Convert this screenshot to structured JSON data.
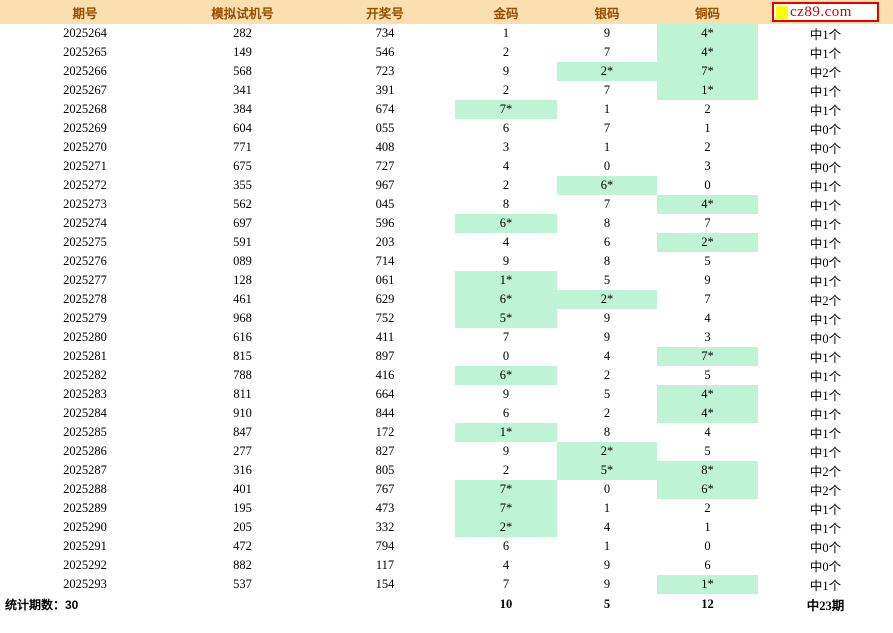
{
  "colors": {
    "header_bg": "#FBDFAE",
    "header_text": "#994C00",
    "hit_bg": "#BFF3D6",
    "logo_border": "#E60000",
    "logo_square": "#FFFF00",
    "logo_text_color": "#D80000",
    "body_text": "#000000"
  },
  "header": {
    "columns": [
      "期号",
      "模拟试机号",
      "开奖号",
      "金码",
      "银码",
      "铜码"
    ],
    "logo": {
      "text": "cz89.com"
    }
  },
  "table": {
    "rows": [
      [
        "2025264",
        "282",
        "734",
        "1",
        "9",
        "4*",
        "中1个"
      ],
      [
        "2025265",
        "149",
        "546",
        "2",
        "7",
        "4*",
        "中1个"
      ],
      [
        "2025266",
        "568",
        "723",
        "9",
        "2*",
        "7*",
        "中2个"
      ],
      [
        "2025267",
        "341",
        "391",
        "2",
        "7",
        "1*",
        "中1个"
      ],
      [
        "2025268",
        "384",
        "674",
        "7*",
        "1",
        "2",
        "中1个"
      ],
      [
        "2025269",
        "604",
        "055",
        "6",
        "7",
        "1",
        "中0个"
      ],
      [
        "2025270",
        "771",
        "408",
        "3",
        "1",
        "2",
        "中0个"
      ],
      [
        "2025271",
        "675",
        "727",
        "4",
        "0",
        "3",
        "中0个"
      ],
      [
        "2025272",
        "355",
        "967",
        "2",
        "6*",
        "0",
        "中1个"
      ],
      [
        "2025273",
        "562",
        "045",
        "8",
        "7",
        "4*",
        "中1个"
      ],
      [
        "2025274",
        "697",
        "596",
        "6*",
        "8",
        "7",
        "中1个"
      ],
      [
        "2025275",
        "591",
        "203",
        "4",
        "6",
        "2*",
        "中1个"
      ],
      [
        "2025276",
        "089",
        "714",
        "9",
        "8",
        "5",
        "中0个"
      ],
      [
        "2025277",
        "128",
        "061",
        "1*",
        "5",
        "9",
        "中1个"
      ],
      [
        "2025278",
        "461",
        "629",
        "6*",
        "2*",
        "7",
        "中2个"
      ],
      [
        "2025279",
        "968",
        "752",
        "5*",
        "9",
        "4",
        "中1个"
      ],
      [
        "2025280",
        "616",
        "411",
        "7",
        "9",
        "3",
        "中0个"
      ],
      [
        "2025281",
        "815",
        "897",
        "0",
        "4",
        "7*",
        "中1个"
      ],
      [
        "2025282",
        "788",
        "416",
        "6*",
        "2",
        "5",
        "中1个"
      ],
      [
        "2025283",
        "811",
        "664",
        "9",
        "5",
        "4*",
        "中1个"
      ],
      [
        "2025284",
        "910",
        "844",
        "6",
        "2",
        "4*",
        "中1个"
      ],
      [
        "2025285",
        "847",
        "172",
        "1*",
        "8",
        "4",
        "中1个"
      ],
      [
        "2025286",
        "277",
        "827",
        "9",
        "2*",
        "5",
        "中1个"
      ],
      [
        "2025287",
        "316",
        "805",
        "2",
        "5*",
        "8*",
        "中2个"
      ],
      [
        "2025288",
        "401",
        "767",
        "7*",
        "0",
        "6*",
        "中2个"
      ],
      [
        "2025289",
        "195",
        "473",
        "7*",
        "1",
        "2",
        "中1个"
      ],
      [
        "2025290",
        "205",
        "332",
        "2*",
        "4",
        "1",
        "中1个"
      ],
      [
        "2025291",
        "472",
        "794",
        "6",
        "1",
        "0",
        "中0个"
      ],
      [
        "2025292",
        "882",
        "117",
        "4",
        "9",
        "6",
        "中0个"
      ],
      [
        "2025293",
        "537",
        "154",
        "7",
        "9",
        "1*",
        "中1个"
      ]
    ]
  },
  "footer": {
    "label": "统计期数：30",
    "gold_total": "10",
    "silver_total": "5",
    "bronze_total": "12",
    "result_total": "中23期"
  }
}
